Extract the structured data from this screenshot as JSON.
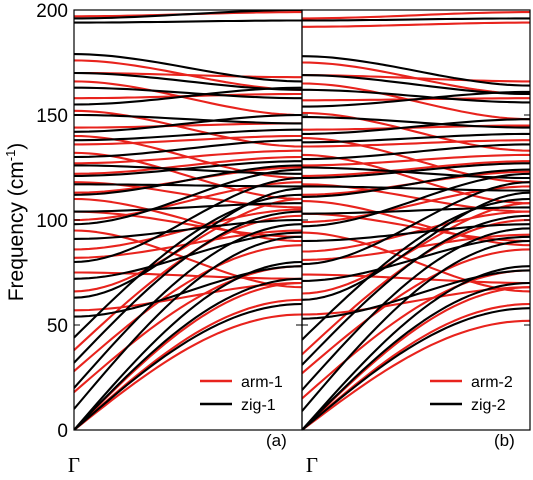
{
  "chart_data": {
    "type": "line",
    "ylabel": "Frequency (cm",
    "ylabel_sup": "-1",
    "ylabel_close": ")",
    "ylim": [
      0,
      200
    ],
    "yticks": [
      0,
      50,
      100,
      150,
      200
    ],
    "ytick_labels": [
      "0",
      "50",
      "100",
      "150",
      "200"
    ],
    "xlabel": "",
    "xtick_label": "Γ",
    "colors": {
      "arm": "#e8231d",
      "zig": "#000000"
    },
    "panels": [
      {
        "tag": "(a)",
        "legend": [
          "arm-1",
          "zig-1"
        ],
        "series": [
          {
            "name": "arm-1",
            "color": "#e8231d",
            "branches": [
              {
                "start": 0,
                "end": 55,
                "shape": "acoustic"
              },
              {
                "start": 0,
                "end": 62,
                "shape": "acoustic"
              },
              {
                "start": 0,
                "end": 70,
                "shape": "acoustic"
              },
              {
                "start": 18,
                "end": 78,
                "shape": "acoustic"
              },
              {
                "start": 28,
                "end": 88,
                "shape": "acoustic"
              },
              {
                "start": 38,
                "end": 102,
                "shape": "acoustic"
              },
              {
                "start": 57,
                "end": 70,
                "shape": "flat"
              },
              {
                "start": 66,
                "end": 110,
                "shape": "rise"
              },
              {
                "start": 75,
                "end": 72,
                "shape": "flat"
              },
              {
                "start": 82,
                "end": 95,
                "shape": "rise"
              },
              {
                "start": 86,
                "end": 105,
                "shape": "rise"
              },
              {
                "start": 95,
                "end": 68,
                "shape": "fall"
              },
              {
                "start": 100,
                "end": 118,
                "shape": "rise"
              },
              {
                "start": 104,
                "end": 92,
                "shape": "fall"
              },
              {
                "start": 110,
                "end": 90,
                "shape": "fall"
              },
              {
                "start": 113,
                "end": 125,
                "shape": "rise"
              },
              {
                "start": 118,
                "end": 106,
                "shape": "fall"
              },
              {
                "start": 122,
                "end": 130,
                "shape": "rise"
              },
              {
                "start": 127,
                "end": 133,
                "shape": "flat"
              },
              {
                "start": 132,
                "end": 110,
                "shape": "fall"
              },
              {
                "start": 136,
                "end": 140,
                "shape": "flat"
              },
              {
                "start": 140,
                "end": 120,
                "shape": "fall"
              },
              {
                "start": 144,
                "end": 146,
                "shape": "flat"
              },
              {
                "start": 152,
                "end": 135,
                "shape": "fall"
              },
              {
                "start": 158,
                "end": 160,
                "shape": "flat"
              },
              {
                "start": 166,
                "end": 150,
                "shape": "fall"
              },
              {
                "start": 170,
                "end": 168,
                "shape": "flat"
              },
              {
                "start": 176,
                "end": 162,
                "shape": "fall"
              },
              {
                "start": 197,
                "end": 199,
                "shape": "flat"
              }
            ]
          },
          {
            "name": "zig-1",
            "color": "#000000",
            "branches": [
              {
                "start": 0,
                "end": 60,
                "shape": "acoustic"
              },
              {
                "start": 0,
                "end": 72,
                "shape": "acoustic"
              },
              {
                "start": 0,
                "end": 80,
                "shape": "acoustic"
              },
              {
                "start": 10,
                "end": 92,
                "shape": "acoustic"
              },
              {
                "start": 20,
                "end": 98,
                "shape": "acoustic"
              },
              {
                "start": 32,
                "end": 104,
                "shape": "acoustic"
              },
              {
                "start": 44,
                "end": 112,
                "shape": "acoustic"
              },
              {
                "start": 54,
                "end": 78,
                "shape": "rise"
              },
              {
                "start": 63,
                "end": 115,
                "shape": "rise"
              },
              {
                "start": 72,
                "end": 94,
                "shape": "rise"
              },
              {
                "start": 80,
                "end": 120,
                "shape": "rise"
              },
              {
                "start": 91,
                "end": 100,
                "shape": "rise"
              },
              {
                "start": 98,
                "end": 124,
                "shape": "rise"
              },
              {
                "start": 104,
                "end": 108,
                "shape": "flat"
              },
              {
                "start": 112,
                "end": 126,
                "shape": "rise"
              },
              {
                "start": 117,
                "end": 116,
                "shape": "flat"
              },
              {
                "start": 121,
                "end": 128,
                "shape": "rise"
              },
              {
                "start": 126,
                "end": 122,
                "shape": "flat"
              },
              {
                "start": 130,
                "end": 138,
                "shape": "rise"
              },
              {
                "start": 138,
                "end": 143,
                "shape": "flat"
              },
              {
                "start": 142,
                "end": 150,
                "shape": "rise"
              },
              {
                "start": 150,
                "end": 146,
                "shape": "flat"
              },
              {
                "start": 155,
                "end": 163,
                "shape": "rise"
              },
              {
                "start": 163,
                "end": 158,
                "shape": "flat"
              },
              {
                "start": 170,
                "end": 162,
                "shape": "fall"
              },
              {
                "start": 179,
                "end": 166,
                "shape": "fall"
              },
              {
                "start": 194,
                "end": 195,
                "shape": "flat"
              },
              {
                "start": 196,
                "end": 200,
                "shape": "rise"
              }
            ]
          }
        ]
      },
      {
        "tag": "(b)",
        "legend": [
          "arm-2",
          "zig-2"
        ],
        "series": [
          {
            "name": "arm-2",
            "color": "#e8231d",
            "branches": [
              {
                "start": 0,
                "end": 52,
                "shape": "acoustic"
              },
              {
                "start": 0,
                "end": 60,
                "shape": "acoustic"
              },
              {
                "start": 0,
                "end": 68,
                "shape": "acoustic"
              },
              {
                "start": 15,
                "end": 76,
                "shape": "acoustic"
              },
              {
                "start": 27,
                "end": 86,
                "shape": "acoustic"
              },
              {
                "start": 36,
                "end": 100,
                "shape": "acoustic"
              },
              {
                "start": 55,
                "end": 68,
                "shape": "flat"
              },
              {
                "start": 65,
                "end": 108,
                "shape": "rise"
              },
              {
                "start": 74,
                "end": 70,
                "shape": "flat"
              },
              {
                "start": 81,
                "end": 93,
                "shape": "rise"
              },
              {
                "start": 85,
                "end": 104,
                "shape": "rise"
              },
              {
                "start": 94,
                "end": 66,
                "shape": "fall"
              },
              {
                "start": 99,
                "end": 116,
                "shape": "rise"
              },
              {
                "start": 103,
                "end": 90,
                "shape": "fall"
              },
              {
                "start": 109,
                "end": 88,
                "shape": "fall"
              },
              {
                "start": 112,
                "end": 123,
                "shape": "rise"
              },
              {
                "start": 117,
                "end": 104,
                "shape": "fall"
              },
              {
                "start": 121,
                "end": 128,
                "shape": "rise"
              },
              {
                "start": 126,
                "end": 131,
                "shape": "flat"
              },
              {
                "start": 131,
                "end": 108,
                "shape": "fall"
              },
              {
                "start": 135,
                "end": 138,
                "shape": "flat"
              },
              {
                "start": 139,
                "end": 118,
                "shape": "fall"
              },
              {
                "start": 143,
                "end": 145,
                "shape": "flat"
              },
              {
                "start": 151,
                "end": 133,
                "shape": "fall"
              },
              {
                "start": 157,
                "end": 158,
                "shape": "flat"
              },
              {
                "start": 165,
                "end": 148,
                "shape": "fall"
              },
              {
                "start": 169,
                "end": 166,
                "shape": "flat"
              },
              {
                "start": 175,
                "end": 160,
                "shape": "fall"
              },
              {
                "start": 192,
                "end": 194,
                "shape": "flat"
              },
              {
                "start": 196,
                "end": 199,
                "shape": "flat"
              }
            ]
          },
          {
            "name": "zig-2",
            "color": "#000000",
            "branches": [
              {
                "start": 0,
                "end": 58,
                "shape": "acoustic"
              },
              {
                "start": 0,
                "end": 70,
                "shape": "acoustic"
              },
              {
                "start": 0,
                "end": 78,
                "shape": "acoustic"
              },
              {
                "start": 9,
                "end": 90,
                "shape": "acoustic"
              },
              {
                "start": 19,
                "end": 96,
                "shape": "acoustic"
              },
              {
                "start": 31,
                "end": 102,
                "shape": "acoustic"
              },
              {
                "start": 43,
                "end": 110,
                "shape": "acoustic"
              },
              {
                "start": 53,
                "end": 76,
                "shape": "rise"
              },
              {
                "start": 62,
                "end": 113,
                "shape": "rise"
              },
              {
                "start": 71,
                "end": 92,
                "shape": "rise"
              },
              {
                "start": 79,
                "end": 118,
                "shape": "rise"
              },
              {
                "start": 90,
                "end": 98,
                "shape": "rise"
              },
              {
                "start": 97,
                "end": 122,
                "shape": "rise"
              },
              {
                "start": 103,
                "end": 106,
                "shape": "flat"
              },
              {
                "start": 111,
                "end": 124,
                "shape": "rise"
              },
              {
                "start": 116,
                "end": 114,
                "shape": "flat"
              },
              {
                "start": 120,
                "end": 127,
                "shape": "rise"
              },
              {
                "start": 125,
                "end": 120,
                "shape": "flat"
              },
              {
                "start": 129,
                "end": 136,
                "shape": "rise"
              },
              {
                "start": 137,
                "end": 141,
                "shape": "flat"
              },
              {
                "start": 141,
                "end": 148,
                "shape": "rise"
              },
              {
                "start": 149,
                "end": 144,
                "shape": "flat"
              },
              {
                "start": 154,
                "end": 161,
                "shape": "rise"
              },
              {
                "start": 162,
                "end": 156,
                "shape": "flat"
              },
              {
                "start": 169,
                "end": 160,
                "shape": "fall"
              },
              {
                "start": 178,
                "end": 164,
                "shape": "fall"
              },
              {
                "start": 195,
                "end": 196,
                "shape": "flat"
              }
            ]
          }
        ]
      }
    ]
  }
}
